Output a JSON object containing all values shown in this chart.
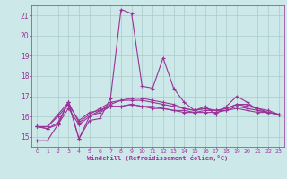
{
  "xlabel": "Windchill (Refroidissement éolien,°C)",
  "background_color": "#cce8e8",
  "grid_color": "#aacccc",
  "line_color": "#993399",
  "xlim": [
    -0.5,
    23.5
  ],
  "ylim": [
    14.5,
    21.5
  ],
  "yticks": [
    15,
    16,
    17,
    18,
    19,
    20,
    21
  ],
  "xticks": [
    0,
    1,
    2,
    3,
    4,
    5,
    6,
    7,
    8,
    9,
    10,
    11,
    12,
    13,
    14,
    15,
    16,
    17,
    18,
    19,
    20,
    21,
    22,
    23
  ],
  "series": [
    [
      14.8,
      14.8,
      15.6,
      16.7,
      14.9,
      15.8,
      15.9,
      16.9,
      21.3,
      21.1,
      17.5,
      17.4,
      18.9,
      17.4,
      16.7,
      16.3,
      16.5,
      16.1,
      16.5,
      17.0,
      16.7,
      16.3,
      16.2,
      16.1
    ],
    [
      15.5,
      15.5,
      16.1,
      16.7,
      14.9,
      16.0,
      16.2,
      16.5,
      16.5,
      16.6,
      16.5,
      16.5,
      16.4,
      16.3,
      16.3,
      16.2,
      16.3,
      16.3,
      16.3,
      16.5,
      16.4,
      16.3,
      16.2,
      16.1
    ],
    [
      15.5,
      15.5,
      16.0,
      16.6,
      15.8,
      16.2,
      16.3,
      16.5,
      16.5,
      16.6,
      16.5,
      16.4,
      16.4,
      16.3,
      16.2,
      16.2,
      16.2,
      16.2,
      16.3,
      16.4,
      16.3,
      16.2,
      16.2,
      16.1
    ],
    [
      15.5,
      15.4,
      15.7,
      16.7,
      15.7,
      16.1,
      16.4,
      16.7,
      16.8,
      16.8,
      16.8,
      16.7,
      16.6,
      16.5,
      16.4,
      16.3,
      16.4,
      16.3,
      16.4,
      16.6,
      16.5,
      16.4,
      16.3,
      16.1
    ],
    [
      15.5,
      15.4,
      15.6,
      16.4,
      15.6,
      16.0,
      16.3,
      16.6,
      16.8,
      16.9,
      16.9,
      16.8,
      16.7,
      16.6,
      16.4,
      16.3,
      16.4,
      16.3,
      16.4,
      16.6,
      16.6,
      16.4,
      16.2,
      16.1
    ]
  ]
}
